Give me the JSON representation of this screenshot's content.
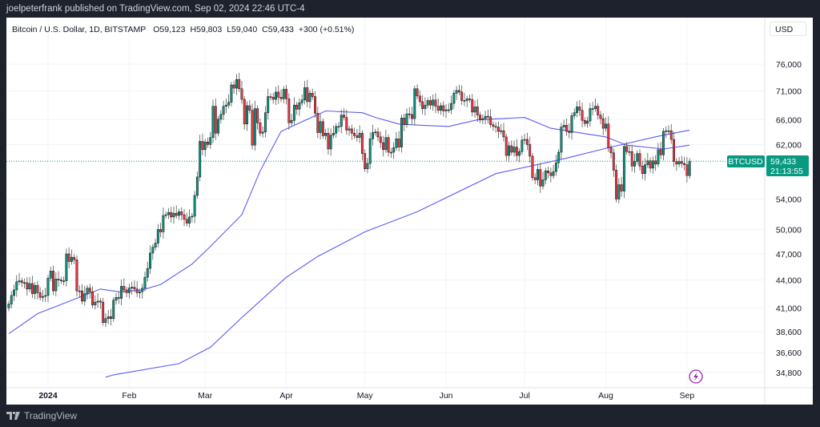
{
  "header": {
    "published": "joelpeterfrank published on TradingView.com, Sep 02, 2024 22:46 UTC-4"
  },
  "legend": {
    "symbol": "Bitcoin / U.S. Dollar, 1D, BITSTAMP",
    "open": "O59,123",
    "high": "H59,803",
    "low": "L59,040",
    "close": "C59,433",
    "change": "+300 (+0.51%)"
  },
  "currency": "USD",
  "last_price": {
    "ticker": "BTCUSD",
    "price": "59,433",
    "countdown": "21:13:55"
  },
  "footer": {
    "brand": "TradingView"
  },
  "colors": {
    "up": "#089981",
    "down": "#f23645",
    "ma": "#5b5bf5",
    "last": "#089981",
    "lightning": "#9c27b0"
  },
  "icons": {
    "alert": "lightning-icon",
    "logo": "tradingview-logo-icon"
  },
  "chart_data": {
    "type": "candlestick",
    "scale": "log",
    "ylim": [
      33500,
      79000
    ],
    "grid": true,
    "y_ticks": [
      76000,
      71000,
      66000,
      62000,
      54000,
      50000,
      47000,
      44000,
      41000,
      38600,
      36600,
      34800
    ],
    "y_tick_labels": [
      "76,000",
      "71,000",
      "66,000",
      "62,000",
      "54,000",
      "50,000",
      "47,000",
      "44,000",
      "41,000",
      "38,600",
      "36,600",
      "34,800"
    ],
    "x_ticks": [
      {
        "date": "2024-01-01",
        "label": "2024",
        "bold": true
      },
      {
        "date": "2024-02-01",
        "label": "Feb"
      },
      {
        "date": "2024-03-01",
        "label": "Mar"
      },
      {
        "date": "2024-04-01",
        "label": "Apr"
      },
      {
        "date": "2024-05-01",
        "label": "May"
      },
      {
        "date": "2024-06-01",
        "label": "Jun"
      },
      {
        "date": "2024-07-01",
        "label": "Jul"
      },
      {
        "date": "2024-08-01",
        "label": "Aug"
      },
      {
        "date": "2024-09-01",
        "label": "Sep"
      }
    ],
    "first_date": "2023-12-17",
    "last_close": 59433,
    "closes": [
      41400,
      42300,
      42900,
      43800,
      43900,
      43700,
      43700,
      43000,
      43600,
      42500,
      43400,
      42600,
      42100,
      42200,
      42300,
      44200,
      45000,
      42800,
      44100,
      44000,
      43900,
      43900,
      47000,
      46100,
      46600,
      46300,
      42800,
      42800,
      41700,
      42500,
      43100,
      42700,
      41300,
      41600,
      41700,
      41600,
      39500,
      39900,
      40100,
      39900,
      41800,
      42100,
      42000,
      43300,
      42900,
      42600,
      43100,
      43200,
      43000,
      42600,
      42700,
      43100,
      44300,
      45300,
      47100,
      47800,
      48300,
      50000,
      49700,
      51800,
      51900,
      52200,
      51600,
      52100,
      51800,
      52300,
      51900,
      51300,
      50800,
      51600,
      51700,
      54500,
      57100,
      62500,
      61200,
      62400,
      62000,
      63100,
      68300,
      63800,
      66100,
      66900,
      68300,
      68500,
      69000,
      72100,
      71500,
      73100,
      71400,
      69500,
      65300,
      68400,
      67600,
      61900,
      67900,
      65500,
      63800,
      64000,
      67200,
      70000,
      69900,
      69500,
      70800,
      69900,
      69600,
      71300,
      69600,
      65500,
      65900,
      68500,
      67800,
      68900,
      69400,
      71600,
      69100,
      70600,
      70000,
      67100,
      63900,
      65700,
      63400,
      63800,
      61300,
      63500,
      63800,
      64900,
      64900,
      66800,
      66400,
      64300,
      64500,
      63800,
      63400,
      63100,
      63800,
      60600,
      58300,
      59100,
      62900,
      63900,
      64000,
      63200,
      62300,
      61200,
      63100,
      60800,
      60800,
      61500,
      62900,
      61600,
      66300,
      65200,
      67000,
      66900,
      66200,
      71400,
      70100,
      69100,
      67900,
      68500,
      69300,
      68500,
      69400,
      68300,
      67600,
      68400,
      67500,
      67700,
      67700,
      68800,
      70600,
      71100,
      70800,
      69300,
      69300,
      69600,
      69500,
      67300,
      68200,
      66800,
      66000,
      66200,
      66600,
      66500,
      65200,
      64900,
      64800,
      64100,
      64200,
      63200,
      60300,
      61800,
      60800,
      61600,
      60300,
      60900,
      62700,
      62800,
      62000,
      60200,
      57000,
      56700,
      58200,
      55800,
      56700,
      58000,
      57700,
      57300,
      57900,
      59200,
      60800,
      64800,
      65100,
      64100,
      63900,
      66700,
      67200,
      68200,
      67600,
      65900,
      65400,
      65800,
      67900,
      67900,
      68300,
      66800,
      66200,
      64600,
      65300,
      61500,
      60700,
      58100,
      54000,
      56000,
      55100,
      61700,
      60900,
      60900,
      58700,
      59400,
      60600,
      58700,
      57600,
      58900,
      59500,
      58400,
      59500,
      59000,
      61200,
      60400,
      64100,
      64200,
      64200,
      62800,
      59400,
      59000,
      59400,
      59100,
      58900,
      57300,
      59433
    ],
    "moving_averages": [
      {
        "points": [
          [
            "2023-12-17",
            38400
          ],
          [
            "2023-12-28",
            40400
          ],
          [
            "2024-01-21",
            43000
          ],
          [
            "2024-01-28",
            42700
          ],
          [
            "2024-02-06",
            42900
          ],
          [
            "2024-02-13",
            43500
          ],
          [
            "2024-02-25",
            45800
          ],
          [
            "2024-03-03",
            47900
          ],
          [
            "2024-03-15",
            51900
          ],
          [
            "2024-03-22",
            58000
          ],
          [
            "2024-03-30",
            64100
          ],
          [
            "2024-04-16",
            67500
          ],
          [
            "2024-04-30",
            67200
          ],
          [
            "2024-05-05",
            66400
          ],
          [
            "2024-05-14",
            65300
          ],
          [
            "2024-05-22",
            65100
          ],
          [
            "2024-06-02",
            64900
          ],
          [
            "2024-06-13",
            66000
          ],
          [
            "2024-07-01",
            66400
          ],
          [
            "2024-07-11",
            64600
          ],
          [
            "2024-08-01",
            63200
          ],
          [
            "2024-08-09",
            61900
          ],
          [
            "2024-08-23",
            61300
          ],
          [
            "2024-09-02",
            61900
          ]
        ]
      },
      {
        "points": [
          [
            "2024-01-23",
            34400
          ],
          [
            "2024-01-26",
            34600
          ],
          [
            "2024-02-20",
            35600
          ],
          [
            "2024-03-03",
            37100
          ],
          [
            "2024-03-15",
            40000
          ],
          [
            "2024-04-01",
            44300
          ],
          [
            "2024-04-13",
            46700
          ],
          [
            "2024-05-01",
            49700
          ],
          [
            "2024-05-21",
            52300
          ],
          [
            "2024-06-20",
            57600
          ],
          [
            "2024-07-16",
            59800
          ],
          [
            "2024-08-03",
            61600
          ],
          [
            "2024-08-21",
            63300
          ],
          [
            "2024-09-02",
            64300
          ]
        ]
      }
    ]
  }
}
